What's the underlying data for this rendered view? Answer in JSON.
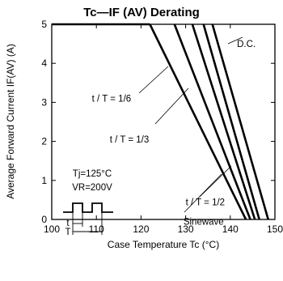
{
  "chart_data": {
    "type": "line",
    "title": "Tc—IF (AV) Derating",
    "xlabel": "Case Temperature  Tc (°C)",
    "ylabel": "Average Forward Current  IF(AV) (A)",
    "xlim": [
      100,
      150
    ],
    "ylim": [
      0,
      5
    ],
    "xticks": [
      "100",
      "110",
      "120",
      "130",
      "140",
      "150"
    ],
    "yticks": [
      "0",
      "1",
      "2",
      "3",
      "4",
      "5"
    ],
    "grid": false,
    "conditions": [
      "Tj=125°C",
      "VR=200V"
    ],
    "waveform_labels": [
      "t",
      "T"
    ],
    "series": [
      {
        "name": "t/T = 1/6",
        "points": [
          [
            122,
            5
          ],
          [
            143.5,
            0
          ]
        ]
      },
      {
        "name": "t/T = 1/3",
        "points": [
          [
            127.5,
            5
          ],
          [
            144.5,
            0
          ]
        ]
      },
      {
        "name": "t/T = 1/2",
        "points": [
          [
            131.5,
            5
          ],
          [
            145.5,
            0
          ]
        ]
      },
      {
        "name": "Sinewave",
        "points": [
          [
            134,
            5
          ],
          [
            146.5,
            0
          ]
        ]
      },
      {
        "name": "D.C.",
        "points": [
          [
            136,
            5
          ],
          [
            148.5,
            0
          ]
        ]
      }
    ],
    "annotations": [
      {
        "series": "D.C.",
        "text": "D.C.",
        "x": 141.5,
        "y": 4.5
      },
      {
        "series": "t/T = 1/6",
        "text": "t / T = 1/6",
        "x": 109,
        "y": 3.1
      },
      {
        "series": "t/T = 1/3",
        "text": "t / T = 1/3",
        "x": 113,
        "y": 2.05
      },
      {
        "series": "t/T = 1/2",
        "text": "t / T = 1/2",
        "x": 130,
        "y": 0.45
      },
      {
        "series": "Sinewave",
        "text": "Sinewave",
        "x": 129.5,
        "y": -0.05
      }
    ]
  }
}
